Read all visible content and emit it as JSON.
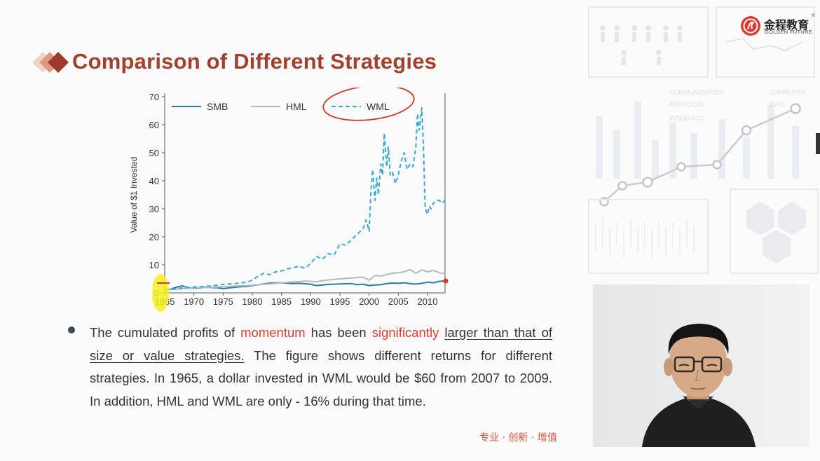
{
  "slide": {
    "title": "Comparison of Different Strategies",
    "logo": {
      "cn": "金程教育",
      "en": "GOLDEN FUTURE",
      "reg": "®"
    },
    "slogan": "专业 · 创新 · 增值",
    "bullet": {
      "p1": "The cumulated profits of ",
      "momentum": "momentum",
      "p2": " has been ",
      "significantly": "significantly",
      "p3": " ",
      "underline1": "larger than that of size or value strategies.",
      "p4": " The figure shows different returns for different strategies. In 1965, a dollar invested in WML would be $60 from 2007 to 2009. In addition, HML and WML are only - 16% during that time."
    },
    "background_art": {
      "labels": [
        "COMMUNICATION",
        "PROTOCOL",
        "INTERFACE",
        "COMPUTER",
        "INFO"
      ]
    }
  },
  "chart_data": {
    "type": "line",
    "ylabel": "Value of $1 Invested",
    "xlabel": "",
    "xlim": [
      1965,
      2013
    ],
    "ylim": [
      0,
      70
    ],
    "yticks": [
      0,
      10,
      20,
      30,
      40,
      50,
      60,
      70
    ],
    "xticks": [
      1965,
      1970,
      1975,
      1980,
      1985,
      1990,
      1995,
      2000,
      2005,
      2010
    ],
    "legend": "top",
    "series": [
      {
        "name": "SMB",
        "color": "#2a7ab0",
        "style": "solid",
        "x": [
          1965,
          1966,
          1967,
          1968,
          1969,
          1970,
          1972,
          1974,
          1975,
          1977,
          1979,
          1980,
          1982,
          1983,
          1985,
          1987,
          1988,
          1990,
          1991,
          1993,
          1995,
          1997,
          1998,
          1999,
          2000,
          2001,
          2002,
          2003,
          2004,
          2005,
          2006,
          2007,
          2008,
          2009,
          2010,
          2011,
          2012,
          2013
        ],
        "y": [
          1,
          1.3,
          2,
          2.5,
          1.8,
          1.6,
          2,
          1.8,
          1.5,
          2,
          2.3,
          2.6,
          3.2,
          3.5,
          3.6,
          3.3,
          3.4,
          3.1,
          2.6,
          3,
          3.2,
          3.3,
          2.9,
          3.1,
          2.6,
          2.8,
          2.9,
          3.3,
          3.5,
          3.4,
          3.6,
          3.3,
          3.1,
          3.4,
          3.8,
          3.6,
          4.1,
          4.3
        ]
      },
      {
        "name": "HML",
        "color": "#b8b8b8",
        "style": "solid",
        "x": [
          1965,
          1967,
          1969,
          1971,
          1973,
          1975,
          1977,
          1979,
          1981,
          1983,
          1985,
          1987,
          1989,
          1991,
          1993,
          1995,
          1997,
          1999,
          2000,
          2001,
          2002,
          2003,
          2004,
          2005,
          2006,
          2007,
          2008,
          2009,
          2010,
          2011,
          2012,
          2013
        ],
        "y": [
          1,
          1.3,
          1.6,
          1.9,
          2,
          2.2,
          2.4,
          2.6,
          2.9,
          3.2,
          3.6,
          3.9,
          4.2,
          4,
          4.6,
          5,
          5.3,
          5.6,
          4.5,
          6.2,
          6,
          6.5,
          7,
          7.2,
          7.5,
          8.3,
          7,
          8.2,
          7.5,
          8,
          7.2,
          6.8
        ]
      },
      {
        "name": "WML",
        "color": "#3aa8d4",
        "style": "dashed",
        "x": [
          1965,
          1967,
          1969,
          1971,
          1973,
          1975,
          1977,
          1979,
          1980,
          1981,
          1982,
          1983,
          1984,
          1985,
          1986,
          1987,
          1988,
          1989,
          1990,
          1991,
          1992,
          1993,
          1994,
          1995,
          1996,
          1997,
          1998,
          1999,
          1999.5,
          2000,
          2000.3,
          2000.6,
          2001,
          2001.3,
          2001.6,
          2002,
          2002.3,
          2002.6,
          2003,
          2003.3,
          2003.6,
          2004,
          2004.5,
          2005,
          2005.5,
          2006,
          2006.5,
          2007,
          2007.5,
          2008,
          2008.3,
          2008.6,
          2009,
          2009.3,
          2009.6,
          2010,
          2010.3,
          2010.6,
          2011,
          2011.5,
          2012,
          2012.5,
          2013
        ],
        "y": [
          1,
          1.5,
          2,
          2.2,
          2.5,
          3,
          3.3,
          3.8,
          4.5,
          6,
          7,
          6.5,
          7.5,
          7.8,
          8.5,
          9,
          9.5,
          8.8,
          10.5,
          13,
          12,
          14,
          13.5,
          17.5,
          17,
          19,
          21,
          23,
          26,
          22,
          36,
          44,
          33,
          41,
          35,
          46,
          42,
          57,
          45,
          52,
          42,
          43,
          39,
          42,
          47,
          50,
          44,
          46,
          45,
          52,
          64,
          58,
          66,
          52,
          30,
          28,
          31,
          30,
          32,
          33,
          33,
          32,
          33
        ]
      }
    ]
  }
}
